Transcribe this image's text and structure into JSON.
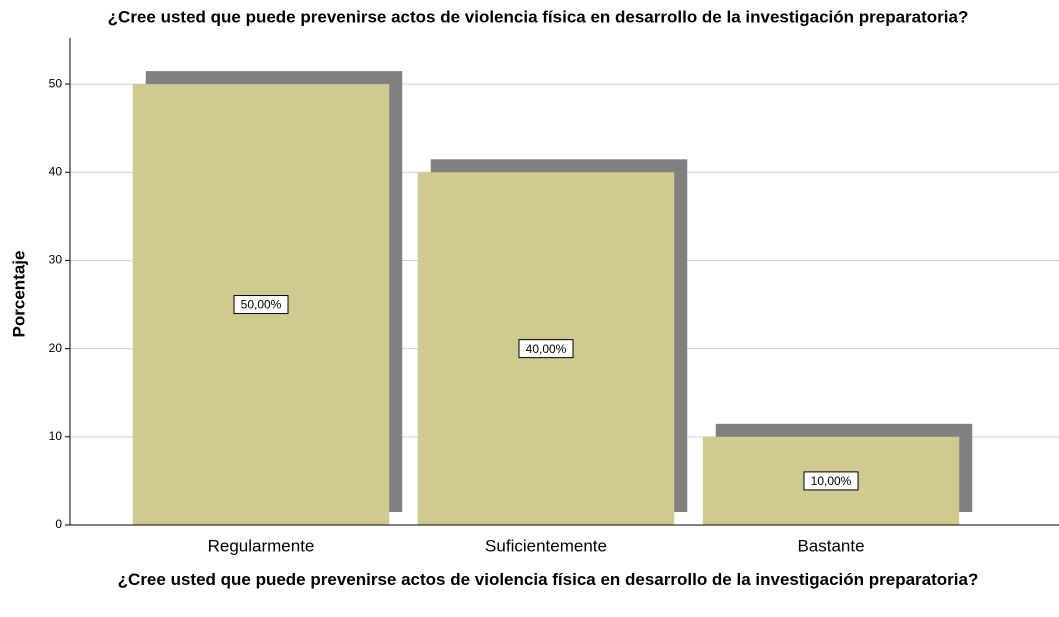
{
  "chart_data": {
    "type": "bar",
    "title": "¿Cree usted que puede prevenirse actos de violencia física en desarrollo de la investigación preparatoria?",
    "xlabel": "¿Cree usted que puede prevenirse actos de violencia física en desarrollo de la investigación preparatoria?",
    "ylabel": "Porcentaje",
    "categories": [
      "Regularmente",
      "Suficientemente",
      "Bastante"
    ],
    "values": [
      50,
      40,
      10
    ],
    "value_labels": [
      "50,00%",
      "40,00%",
      "10,00%"
    ],
    "color": "#cfca8f",
    "shadow_color": "#808080",
    "ylim": [
      0,
      55
    ],
    "yticks": [
      0,
      10,
      20,
      30,
      40,
      50
    ],
    "grid": true
  }
}
